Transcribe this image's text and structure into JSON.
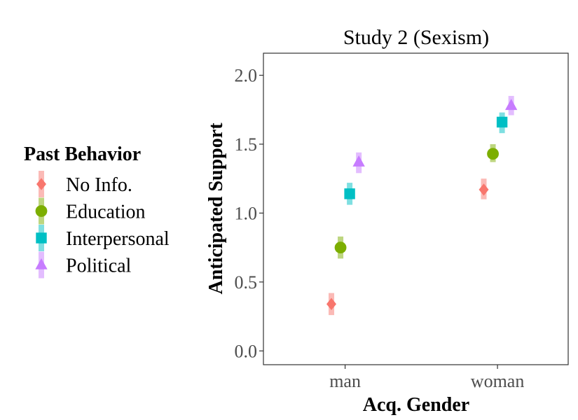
{
  "chart_data": {
    "type": "scatter",
    "title": "Study 2 (Sexism)",
    "xlabel": "Acq. Gender",
    "ylabel": "Anticipated Support",
    "categories": [
      "man",
      "woman"
    ],
    "yticks": [
      "0.0",
      "0.5",
      "1.0",
      "1.5",
      "2.0"
    ],
    "ylim": [
      -0.1,
      2.16
    ],
    "grid": false,
    "legend_position": "left",
    "legend_title": "Past Behavior",
    "series": [
      {
        "name": "No Info.",
        "shape": "diamond",
        "color": "#F8766D",
        "values": [
          0.34,
          1.17
        ],
        "lower": [
          0.26,
          1.1
        ],
        "upper": [
          0.42,
          1.25
        ]
      },
      {
        "name": "Education",
        "shape": "circle",
        "color": "#7CAE00",
        "values": [
          0.75,
          1.43
        ],
        "lower": [
          0.67,
          1.37
        ],
        "upper": [
          0.83,
          1.5
        ]
      },
      {
        "name": "Interpersonal",
        "shape": "square",
        "color": "#00BFC4",
        "values": [
          1.14,
          1.66
        ],
        "lower": [
          1.06,
          1.58
        ],
        "upper": [
          1.22,
          1.73
        ]
      },
      {
        "name": "Political",
        "shape": "triangle",
        "color": "#C77CFF",
        "values": [
          1.37,
          1.78
        ],
        "lower": [
          1.29,
          1.71
        ],
        "upper": [
          1.44,
          1.85
        ]
      }
    ]
  }
}
